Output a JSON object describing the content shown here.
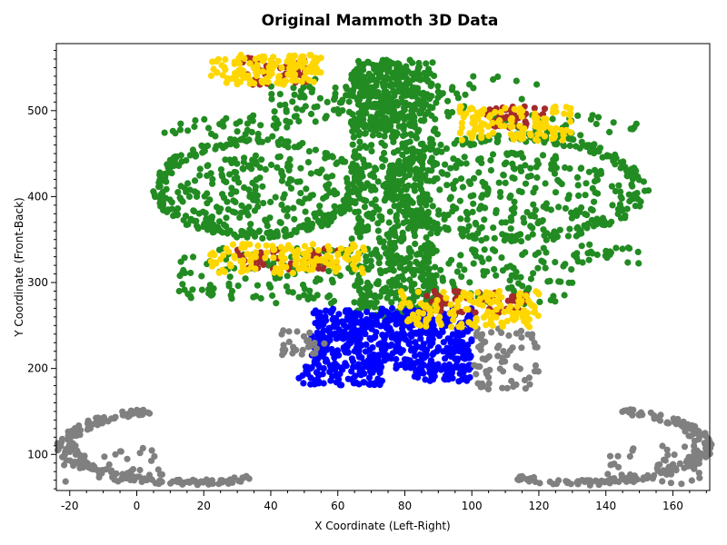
{
  "chart_data": {
    "type": "scatter",
    "title": "Original Mammoth 3D Data",
    "xlabel": "X Coordinate (Left-Right)",
    "ylabel": "Y Coordinate (Front-Back)",
    "xlim": [
      -24,
      171
    ],
    "ylim": [
      58,
      578
    ],
    "xticks": [
      -20,
      0,
      20,
      40,
      60,
      80,
      100,
      120,
      140,
      160
    ],
    "yticks": [
      100,
      200,
      300,
      400,
      500
    ],
    "grid": false,
    "legend": "none",
    "series": [
      {
        "color": "#228B22",
        "regions": [
          {
            "shape": "ellipse_ring",
            "cx": 36,
            "cy": 410,
            "rx": 30,
            "ry": 56,
            "n": 240
          },
          {
            "shape": "ellipse_fill",
            "cx": 38,
            "cy": 400,
            "rx": 26,
            "ry": 48,
            "n": 220
          },
          {
            "shape": "ellipse_ring",
            "cx": 113,
            "cy": 410,
            "rx": 38,
            "ry": 60,
            "n": 260
          },
          {
            "shape": "ellipse_fill",
            "cx": 112,
            "cy": 400,
            "rx": 33,
            "ry": 52,
            "n": 240
          },
          {
            "shape": "rect",
            "x": [
              64,
              90
            ],
            "y": [
              260,
              560
            ],
            "n": 650
          },
          {
            "shape": "rect",
            "x": [
              64,
              84
            ],
            "y": [
              470,
              560
            ],
            "n": 160
          },
          {
            "shape": "rect",
            "x": [
              40,
              100
            ],
            "y": [
              485,
              530
            ],
            "n": 90
          },
          {
            "shape": "rect",
            "x": [
              8,
              48
            ],
            "y": [
              470,
              495
            ],
            "n": 40
          },
          {
            "shape": "rect",
            "x": [
              105,
              150
            ],
            "y": [
              470,
              495
            ],
            "n": 40
          },
          {
            "shape": "rect",
            "x": [
              12,
              130
            ],
            "y": [
              275,
              340
            ],
            "n": 260
          },
          {
            "shape": "rect",
            "x": [
              130,
              150
            ],
            "y": [
              320,
              345
            ],
            "n": 25
          },
          {
            "shape": "rect",
            "x": [
              30,
              120
            ],
            "y": [
              510,
              540
            ],
            "n": 30
          }
        ]
      },
      {
        "color": "#0000FF",
        "regions": [
          {
            "shape": "rect",
            "x": [
              52,
              100
            ],
            "y": [
              200,
              270
            ],
            "n": 520
          },
          {
            "shape": "rect",
            "x": [
              48,
              74
            ],
            "y": [
              180,
              205
            ],
            "n": 80
          },
          {
            "shape": "rect",
            "x": [
              82,
              100
            ],
            "y": [
              185,
              205
            ],
            "n": 60
          }
        ]
      },
      {
        "color": "#808080",
        "regions": [
          {
            "shape": "ellipse_ring",
            "cx": 16,
            "cy": 110,
            "rx": 38,
            "ry": 44,
            "n": 190,
            "arc_deg": [
              110,
              300
            ]
          },
          {
            "shape": "ellipse_ring",
            "cx": 132,
            "cy": 110,
            "rx": 38,
            "ry": 44,
            "n": 190,
            "arc_deg": [
              -120,
              70
            ]
          },
          {
            "shape": "rect",
            "x": [
              43,
              56
            ],
            "y": [
              215,
              245
            ],
            "n": 30
          },
          {
            "shape": "rect",
            "x": [
              100,
              120
            ],
            "y": [
              175,
              250
            ],
            "n": 70
          },
          {
            "shape": "rect",
            "x": [
              -22,
              8
            ],
            "y": [
              65,
              110
            ],
            "n": 40
          },
          {
            "shape": "rect",
            "x": [
              140,
              170
            ],
            "y": [
              65,
              110
            ],
            "n": 40
          }
        ]
      },
      {
        "color": "#A52A2A",
        "regions": [
          {
            "shape": "rect",
            "x": [
              30,
              52
            ],
            "y": [
              530,
              565
            ],
            "n": 45
          },
          {
            "shape": "rect",
            "x": [
              104,
              122
            ],
            "y": [
              480,
              505
            ],
            "n": 40
          },
          {
            "shape": "rect",
            "x": [
              30,
              60
            ],
            "y": [
              315,
              340
            ],
            "n": 40
          },
          {
            "shape": "rect",
            "x": [
              86,
              118
            ],
            "y": [
              265,
              290
            ],
            "n": 50
          }
        ]
      },
      {
        "color": "#FFD700",
        "regions": [
          {
            "shape": "rect",
            "x": [
              22,
              55
            ],
            "y": [
              530,
              565
            ],
            "n": 130
          },
          {
            "shape": "rect",
            "x": [
              96,
              130
            ],
            "y": [
              465,
              505
            ],
            "n": 120
          },
          {
            "shape": "rect",
            "x": [
              22,
              68
            ],
            "y": [
              310,
              345
            ],
            "n": 140
          },
          {
            "shape": "rect",
            "x": [
              78,
              120
            ],
            "y": [
              248,
              290
            ],
            "n": 150
          }
        ]
      }
    ]
  }
}
